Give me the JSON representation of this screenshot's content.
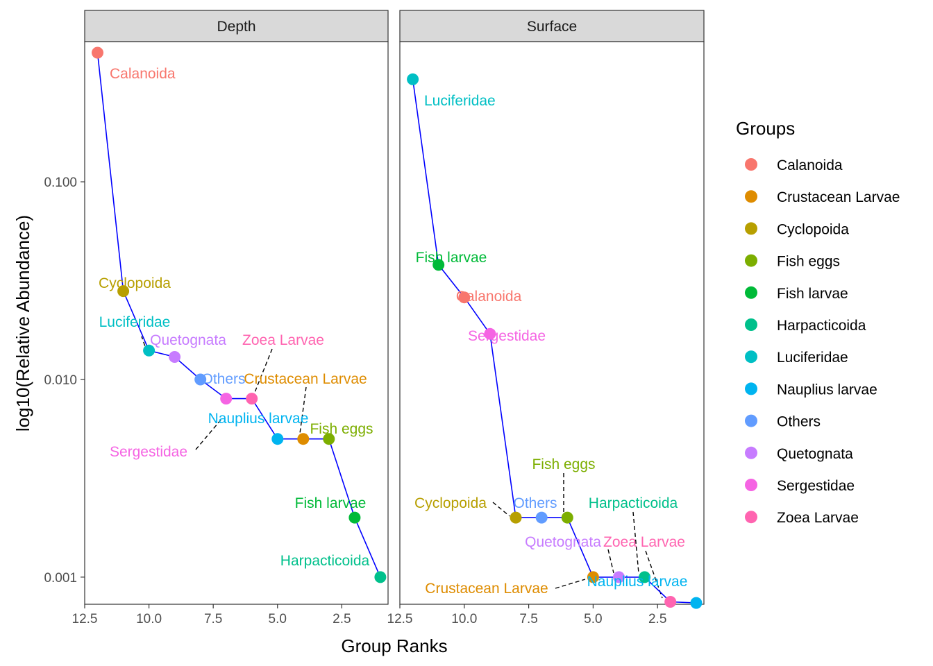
{
  "chart_data": {
    "type": "scatter",
    "facets": [
      "Depth",
      "Surface"
    ],
    "xlabel": "Group Ranks",
    "ylabel": "log10(Relative Abundance)",
    "x_reversed": true,
    "xlim": [
      12.5,
      0.7
    ],
    "xticks": [
      12.5,
      10.0,
      7.5,
      5.0,
      2.5
    ],
    "xtick_labels": [
      "12.5",
      "10.0",
      "7.5",
      "5.0",
      "2.5"
    ],
    "y_scale": "log10",
    "yticks": [
      0.1,
      0.01,
      0.001
    ],
    "ytick_labels": [
      "0.100",
      "0.010",
      "0.001"
    ],
    "legend_title": "Groups",
    "groups": [
      {
        "name": "Calanoida",
        "color": "#F8766D"
      },
      {
        "name": "Crustacean Larvae",
        "color": "#DE8C00"
      },
      {
        "name": "Cyclopoida",
        "color": "#B79F00"
      },
      {
        "name": "Fish eggs",
        "color": "#7CAE00"
      },
      {
        "name": "Fish larvae",
        "color": "#00BA38"
      },
      {
        "name": "Harpacticoida",
        "color": "#00C08B"
      },
      {
        "name": "Luciferidae",
        "color": "#00BFC4"
      },
      {
        "name": "Nauplius larvae",
        "color": "#00B4F0"
      },
      {
        "name": "Others",
        "color": "#619CFF"
      },
      {
        "name": "Quetognata",
        "color": "#C77CFF"
      },
      {
        "name": "Sergestidae",
        "color": "#F564E3"
      },
      {
        "name": "Zoea Larvae",
        "color": "#FF64B0"
      }
    ],
    "panels": [
      {
        "facet": "Depth",
        "points": [
          {
            "group": "Calanoida",
            "rank": 12,
            "value": 0.45
          },
          {
            "group": "Cyclopoida",
            "rank": 11,
            "value": 0.028
          },
          {
            "group": "Luciferidae",
            "rank": 10,
            "value": 0.014
          },
          {
            "group": "Quetognata",
            "rank": 9,
            "value": 0.013
          },
          {
            "group": "Others",
            "rank": 8,
            "value": 0.01
          },
          {
            "group": "Sergestidae",
            "rank": 7,
            "value": 0.008
          },
          {
            "group": "Zoea Larvae",
            "rank": 6,
            "value": 0.008
          },
          {
            "group": "Nauplius larvae",
            "rank": 5,
            "value": 0.005
          },
          {
            "group": "Crustacean Larvae",
            "rank": 4,
            "value": 0.005
          },
          {
            "group": "Fish eggs",
            "rank": 3,
            "value": 0.005
          },
          {
            "group": "Fish larvae",
            "rank": 2,
            "value": 0.002
          },
          {
            "group": "Harpacticoida",
            "rank": 1,
            "value": 0.001
          }
        ]
      },
      {
        "facet": "Surface",
        "points": [
          {
            "group": "Luciferidae",
            "rank": 12,
            "value": 0.33
          },
          {
            "group": "Fish larvae",
            "rank": 11,
            "value": 0.038
          },
          {
            "group": "Calanoida",
            "rank": 10,
            "value": 0.026
          },
          {
            "group": "Sergestidae",
            "rank": 9,
            "value": 0.017
          },
          {
            "group": "Cyclopoida",
            "rank": 8,
            "value": 0.002
          },
          {
            "group": "Others",
            "rank": 7,
            "value": 0.002
          },
          {
            "group": "Fish eggs",
            "rank": 6,
            "value": 0.002
          },
          {
            "group": "Crustacean Larvae",
            "rank": 5,
            "value": 0.001
          },
          {
            "group": "Quetognata",
            "rank": 4,
            "value": 0.001
          },
          {
            "group": "Harpacticoida",
            "rank": 3,
            "value": 0.001
          },
          {
            "group": "Zoea Larvae",
            "rank": 2,
            "value": 0.00075
          },
          {
            "group": "Nauplius larvae",
            "rank": 1,
            "value": 0.00074
          }
        ]
      }
    ]
  }
}
